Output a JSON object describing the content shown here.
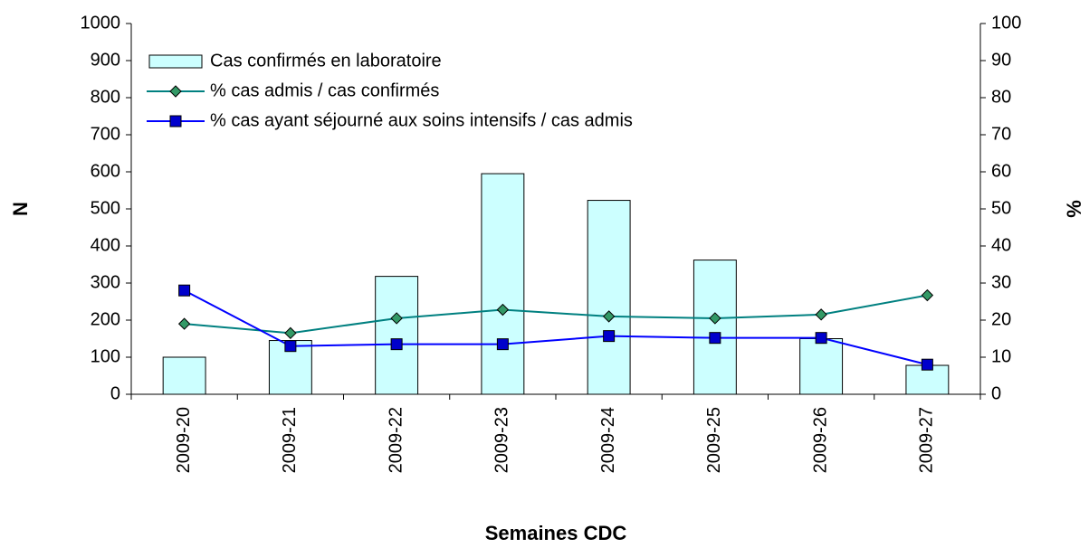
{
  "chart_data": {
    "type": "bar",
    "categories": [
      "2009-20",
      "2009-21",
      "2009-22",
      "2009-23",
      "2009-24",
      "2009-25",
      "2009-26",
      "2009-27"
    ],
    "series": [
      {
        "name": "Cas confirmés en laboratoire",
        "type": "bar",
        "color": "#ccffff",
        "values": [
          100,
          145,
          318,
          595,
          523,
          362,
          150,
          78
        ]
      },
      {
        "name": "% cas admis / cas confirmés",
        "type": "line",
        "marker": "diamond",
        "color": "#008080",
        "axis": "y2",
        "values": [
          19,
          16.5,
          20.5,
          22.8,
          21,
          20.5,
          21.5,
          26.7
        ]
      },
      {
        "name": "% cas ayant séjourné aux soins intensifs / cas admis",
        "type": "line",
        "marker": "square",
        "color": "#0000ff",
        "axis": "y2",
        "values": [
          28,
          13,
          13.5,
          13.5,
          15.7,
          15.2,
          15.2,
          8
        ]
      }
    ],
    "xlabel": "Semaines CDC",
    "ylabel": "N",
    "y2label": "%",
    "ylim": [
      0,
      1000
    ],
    "yticks": [
      0,
      100,
      200,
      300,
      400,
      500,
      600,
      700,
      800,
      900,
      1000
    ],
    "y2lim": [
      0,
      100
    ],
    "y2ticks": [
      0,
      10,
      20,
      30,
      40,
      50,
      60,
      70,
      80,
      90,
      100
    ],
    "grid": false,
    "legend": "upper left"
  }
}
